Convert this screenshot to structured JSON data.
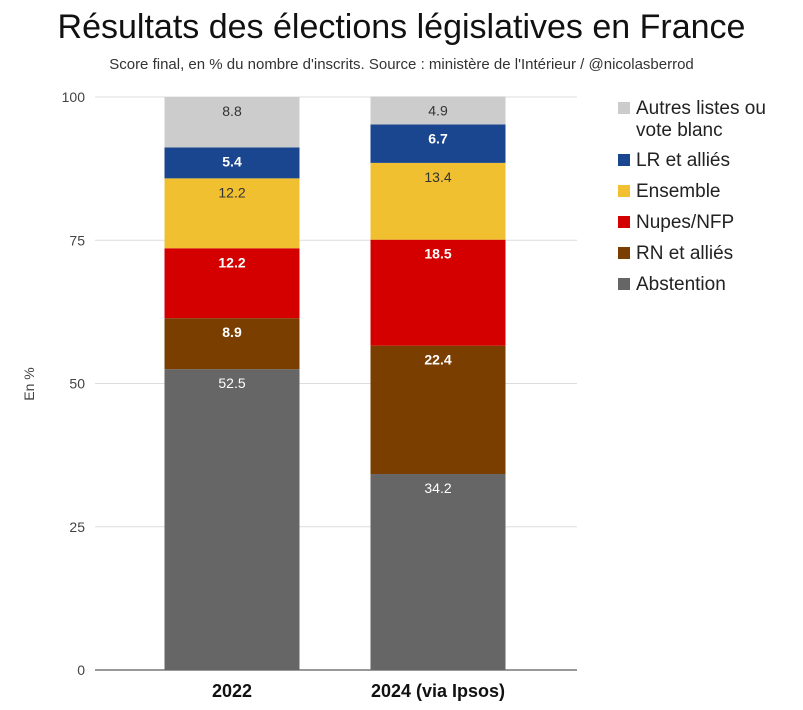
{
  "chart_data": {
    "type": "bar",
    "stacked": true,
    "title": "Résultats des élections législatives en France",
    "subtitle": "Score final, en % du nombre d'inscrits. Source : ministère de l'Intérieur / @nicolasberrod",
    "ylabel": "En %",
    "xlabel": "",
    "ylim": [
      0,
      100
    ],
    "yticks": [
      0,
      25,
      50,
      75,
      100
    ],
    "grid": true,
    "legend": "right",
    "categories": [
      "2022",
      "2024 (via Ipsos)"
    ],
    "series": [
      {
        "name": "Abstention",
        "color": "#666666",
        "label_color": "#ffffff",
        "label_bold": false,
        "values": [
          52.5,
          34.2
        ]
      },
      {
        "name": "RN et alliés",
        "color": "#7a3f00",
        "label_color": "#ffffff",
        "label_bold": true,
        "values": [
          8.9,
          22.4
        ]
      },
      {
        "name": "Nupes/NFP",
        "color": "#d40000",
        "label_color": "#ffffff",
        "label_bold": true,
        "values": [
          12.2,
          18.5
        ]
      },
      {
        "name": "Ensemble",
        "color": "#f0c030",
        "label_color": "#333333",
        "label_bold": false,
        "values": [
          12.2,
          13.4
        ]
      },
      {
        "name": "LR et alliés",
        "color": "#1a4690",
        "label_color": "#ffffff",
        "label_bold": true,
        "values": [
          5.4,
          6.7
        ]
      },
      {
        "name": "Autres listes ou vote blanc",
        "legend_lines": [
          "Autres listes ou",
          "vote blanc"
        ],
        "color": "#cccccc",
        "label_color": "#333333",
        "label_bold": false,
        "values": [
          8.8,
          4.9
        ]
      }
    ]
  }
}
